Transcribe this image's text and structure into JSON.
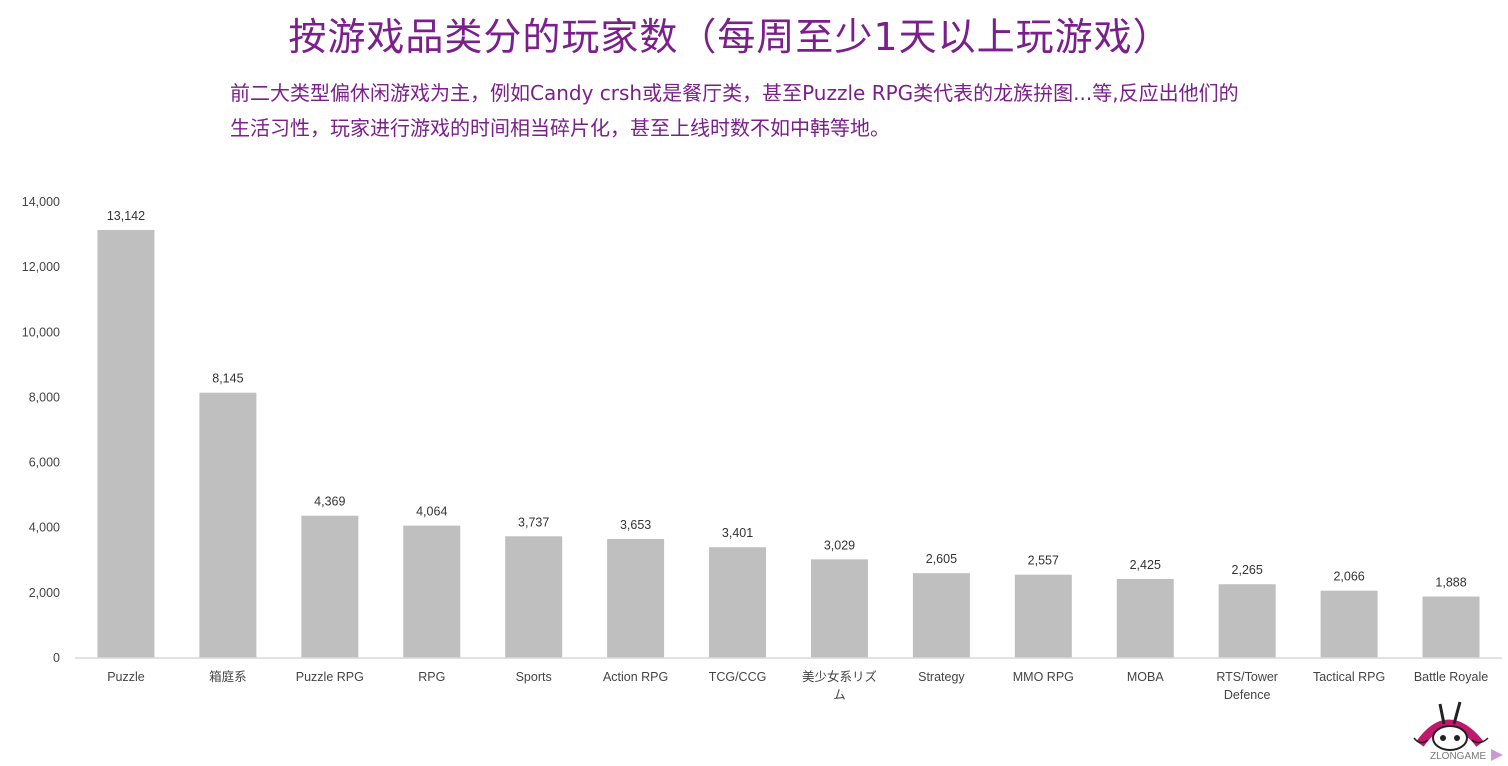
{
  "page": {
    "title": "按游戏品类分的玩家数（每周至少1天以上玩游戏）",
    "subtitle_line1": "前二大类型偏休闲游戏为主，例如Candy crsh或是餐厅类，甚至Puzzle RPG类代表的龙族拚图...等,反应出他们的",
    "subtitle_line2": "生活习性，玩家进行游戏的时间相当碎片化，甚至上线时数不如中韩等地。",
    "logo_text": "ZLONGAME",
    "colors": {
      "title": "#7b1f8c",
      "bar": "#bfbfbf",
      "axis": "#d9d9d9",
      "logo": "#c2186b"
    }
  },
  "chart_data": {
    "type": "bar",
    "categories": [
      "Puzzle",
      "箱庭系",
      "Puzzle RPG",
      "RPG",
      "Sports",
      "Action RPG",
      "TCG/CCG",
      "美少女系リズム",
      "Strategy",
      "MMO RPG",
      "MOBA",
      "RTS/Tower Defence",
      "Tactical RPG",
      "Battle Royale"
    ],
    "category_lines": [
      [
        "Puzzle"
      ],
      [
        "箱庭系"
      ],
      [
        "Puzzle RPG"
      ],
      [
        "RPG"
      ],
      [
        "Sports"
      ],
      [
        "Action RPG"
      ],
      [
        "TCG/CCG"
      ],
      [
        "美少女系リズ",
        "ム"
      ],
      [
        "Strategy"
      ],
      [
        "MMO RPG"
      ],
      [
        "MOBA"
      ],
      [
        "RTS/Tower",
        "Defence"
      ],
      [
        "Tactical RPG"
      ],
      [
        "Battle Royale"
      ]
    ],
    "values": [
      13142,
      8145,
      4369,
      4064,
      3737,
      3653,
      3401,
      3029,
      2605,
      2557,
      2425,
      2265,
      2066,
      1888
    ],
    "value_labels": [
      "13,142",
      "8,145",
      "4,369",
      "4,064",
      "3,737",
      "3,653",
      "3,401",
      "3,029",
      "2,605",
      "2,557",
      "2,425",
      "2,265",
      "2,066",
      "1,888"
    ],
    "yticks": [
      0,
      2000,
      4000,
      6000,
      8000,
      10000,
      12000,
      14000
    ],
    "ytick_labels": [
      "0",
      "2,000",
      "4,000",
      "6,000",
      "8,000",
      "10,000",
      "12,000",
      "14,000"
    ],
    "ylim": [
      0,
      14000
    ],
    "grid": false,
    "legend": "none"
  }
}
